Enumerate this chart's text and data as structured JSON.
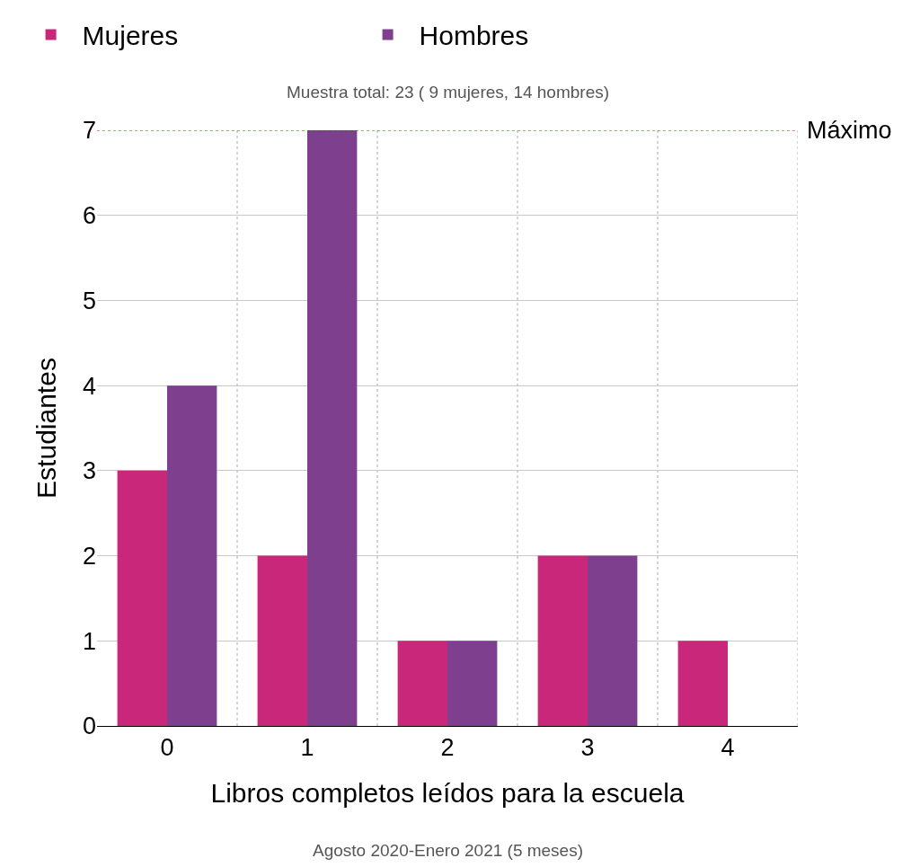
{
  "chart_data": {
    "type": "bar",
    "subtitle": "Muestra total: 23 ( 9 mujeres, 14 hombres)",
    "xlabel": "Libros completos leídos para la escuela",
    "ylabel": "Estudiantes",
    "categories": [
      "0",
      "1",
      "2",
      "3",
      "4"
    ],
    "series": [
      {
        "name": "Mujeres",
        "color": "#c9287a",
        "values": [
          3,
          2,
          1,
          2,
          1
        ]
      },
      {
        "name": "Hombres",
        "color": "#7f3f8f",
        "values": [
          4,
          7,
          1,
          2,
          0
        ]
      }
    ],
    "ylim": [
      0,
      7
    ],
    "yticks": [
      0,
      1,
      2,
      3,
      4,
      5,
      6,
      7
    ],
    "grid": true,
    "legend": "top",
    "ref_lines": [
      {
        "axis": "y",
        "value": 7,
        "label": "Máximo",
        "color": "#ff0000",
        "line_style": "dotted"
      }
    ],
    "annotations": [
      "Agosto 2020-Enero 2021 (5 meses)"
    ]
  }
}
